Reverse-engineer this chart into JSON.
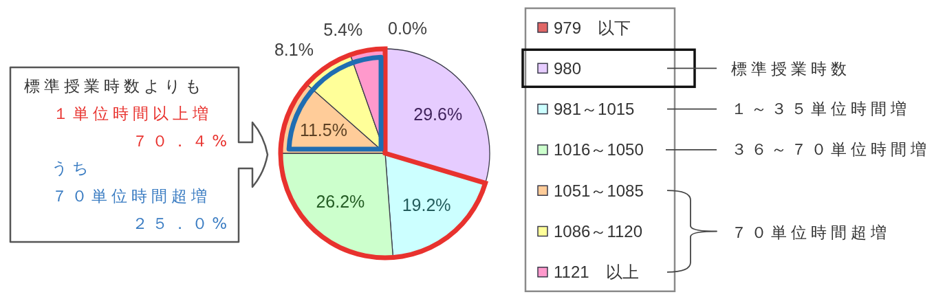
{
  "chart_data": {
    "type": "pie",
    "categories": [
      "979　以下",
      "980",
      "981～1015",
      "1016～1050",
      "1051～1085",
      "1086～1120",
      "1121　以上"
    ],
    "values": [
      0.0,
      29.6,
      19.2,
      26.2,
      11.5,
      8.1,
      5.4
    ],
    "colors": [
      "#e06666",
      "#e6ccff",
      "#ccffff",
      "#ccffcc",
      "#ffcc99",
      "#ffff99",
      "#ff99cc"
    ],
    "value_labels": [
      "0.0%",
      "29.6%",
      "19.2%",
      "26.2%",
      "11.5%",
      "8.1%",
      "5.4%"
    ],
    "legend": "right",
    "annotations": [
      "標準授業時数よりも",
      "１単位時間以上増",
      "７０．４%",
      "うち",
      "７０単位時間超増",
      "２５．０%",
      "標準授業時数",
      "１～３５単位時間増",
      "３６～７０単位時間増",
      "７０単位時間超増"
    ]
  }
}
